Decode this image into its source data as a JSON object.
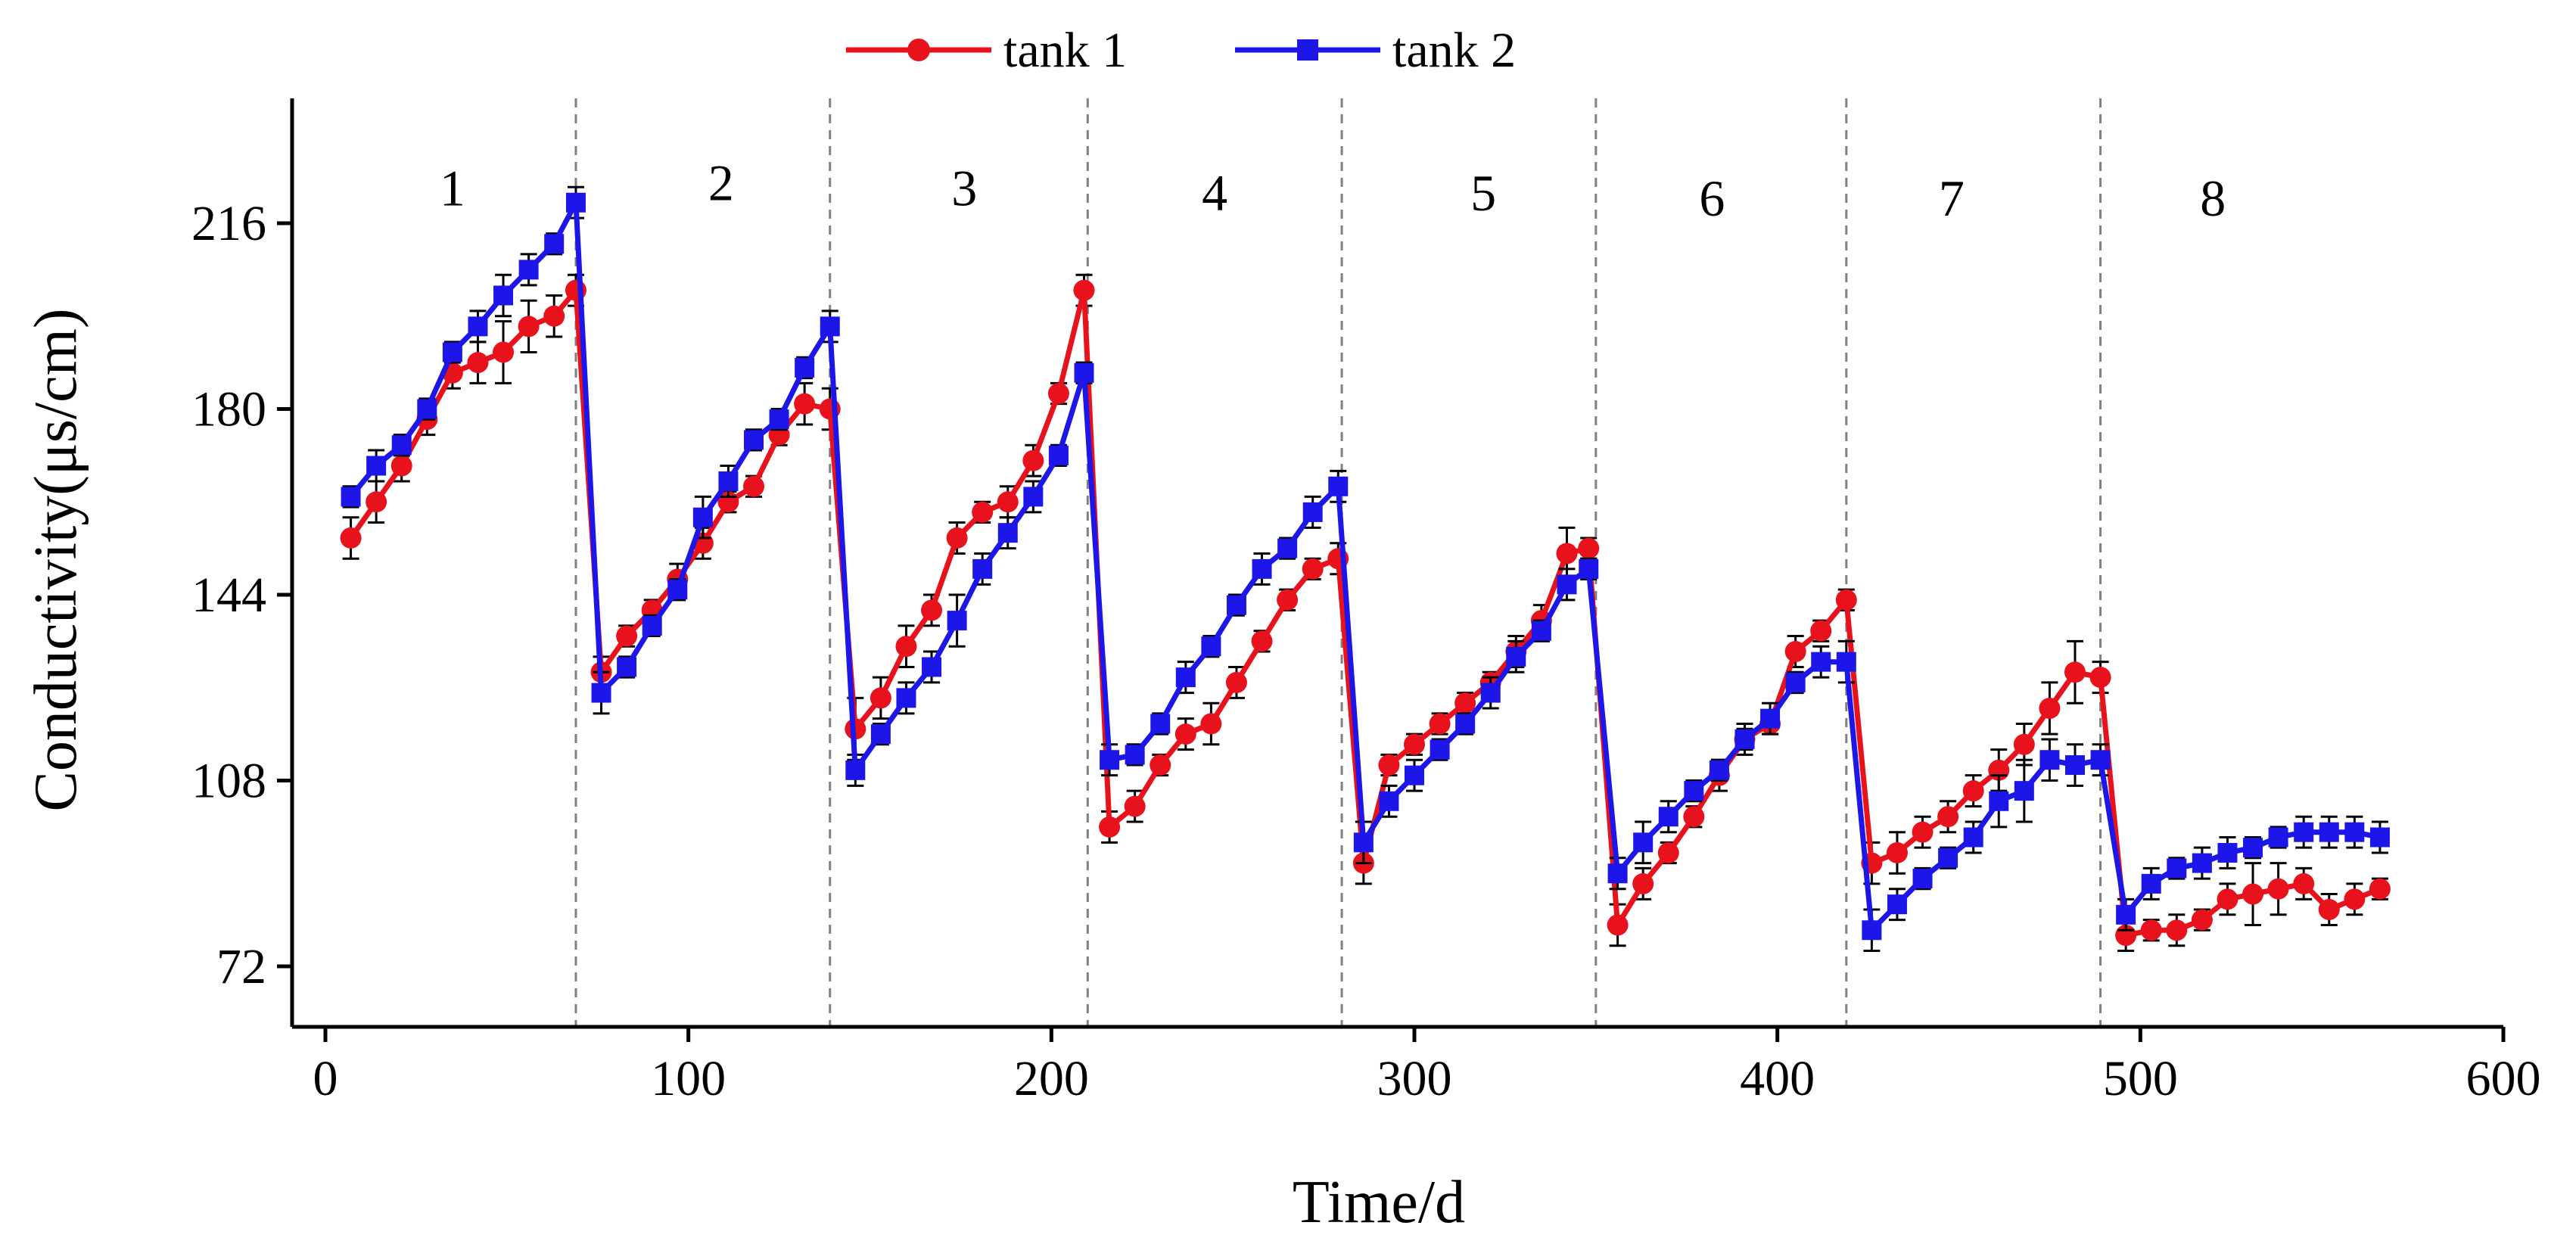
{
  "chart_data": {
    "type": "line",
    "title": "",
    "xlabel": "Time/d",
    "ylabel": "Conductivity(μs/cm)",
    "xlim": [
      -10,
      600
    ],
    "ylim": [
      60,
      239
    ],
    "xticks": [
      0,
      100,
      200,
      300,
      400,
      500,
      600
    ],
    "yticks": [
      72,
      108,
      144,
      180,
      216
    ],
    "legend_position": "top-center",
    "stage_boundaries": [
      69,
      139,
      210,
      280,
      350,
      419,
      489
    ],
    "stages": [
      {
        "label": "1",
        "x": 35,
        "y": 223
      },
      {
        "label": "2",
        "x": 109,
        "y": 224
      },
      {
        "label": "3",
        "x": 176,
        "y": 223
      },
      {
        "label": "4",
        "x": 245,
        "y": 222
      },
      {
        "label": "5",
        "x": 319,
        "y": 222
      },
      {
        "label": "6",
        "x": 382,
        "y": 221
      },
      {
        "label": "7",
        "x": 448,
        "y": 221
      },
      {
        "label": "8",
        "x": 520,
        "y": 221
      }
    ],
    "series": [
      {
        "name": "tank 1",
        "color": "#e8121c",
        "marker": "circle",
        "x": [
          7,
          14,
          21,
          28,
          35,
          42,
          49,
          56,
          63,
          69,
          76,
          83,
          90,
          97,
          104,
          111,
          118,
          125,
          132,
          139,
          146,
          153,
          160,
          167,
          174,
          181,
          188,
          195,
          202,
          209,
          216,
          223,
          230,
          237,
          244,
          251,
          258,
          265,
          272,
          279,
          286,
          293,
          300,
          307,
          314,
          321,
          328,
          335,
          342,
          348,
          356,
          363,
          370,
          377,
          384,
          391,
          398,
          405,
          412,
          419,
          426,
          433,
          440,
          447,
          454,
          461,
          468,
          475,
          482,
          489,
          496,
          503,
          510,
          517,
          524,
          531,
          538,
          545,
          552,
          559,
          566
        ],
        "y": [
          155,
          162,
          169,
          178,
          187,
          189,
          191,
          196,
          198,
          203,
          129,
          136,
          141,
          147,
          154,
          162,
          165,
          175,
          181,
          180,
          118,
          124,
          134,
          141,
          155,
          160,
          162,
          170,
          183,
          203,
          99,
          103,
          111,
          117,
          119,
          127,
          135,
          143,
          149,
          151,
          92,
          111,
          115,
          119,
          123,
          127,
          133,
          139,
          152,
          153,
          80,
          88,
          94,
          101,
          109,
          116,
          119,
          133,
          137,
          143,
          92,
          94,
          98,
          101,
          106,
          110,
          115,
          122,
          129,
          128,
          78,
          79,
          79,
          81,
          85,
          86,
          87,
          88,
          83,
          85,
          87
        ],
        "err": [
          4,
          4,
          3,
          3,
          3,
          4,
          6,
          5,
          4,
          3,
          3,
          2,
          2,
          3,
          3,
          2,
          2,
          2,
          4,
          4,
          6,
          4,
          4,
          3,
          3,
          2,
          3,
          3,
          2,
          3,
          3,
          3,
          2,
          3,
          4,
          3,
          2,
          2,
          2,
          3,
          4,
          2,
          2,
          2,
          2,
          2,
          3,
          3,
          5,
          2,
          4,
          3,
          2,
          2,
          3,
          3,
          2,
          3,
          2,
          2,
          4,
          4,
          3,
          3,
          3,
          4,
          4,
          5,
          6,
          3,
          3,
          2,
          3,
          2,
          3,
          6,
          5,
          3,
          3,
          3,
          2
        ]
      },
      {
        "name": "tank 2",
        "color": "#1c17e8",
        "marker": "square",
        "x": [
          7,
          14,
          21,
          28,
          35,
          42,
          49,
          56,
          63,
          69,
          76,
          83,
          90,
          97,
          104,
          111,
          118,
          125,
          132,
          139,
          146,
          153,
          160,
          167,
          174,
          181,
          188,
          195,
          202,
          209,
          216,
          223,
          230,
          237,
          244,
          251,
          258,
          265,
          272,
          279,
          286,
          293,
          300,
          307,
          314,
          321,
          328,
          335,
          342,
          348,
          356,
          363,
          370,
          377,
          384,
          391,
          398,
          405,
          412,
          419,
          426,
          433,
          440,
          447,
          454,
          461,
          468,
          475,
          482,
          489,
          496,
          503,
          510,
          517,
          524,
          531,
          538,
          545,
          552,
          559,
          566
        ],
        "y": [
          163,
          169,
          173,
          180,
          191,
          196,
          202,
          207,
          212,
          220,
          125,
          130,
          138,
          145,
          159,
          166,
          174,
          178,
          188,
          196,
          110,
          117,
          124,
          130,
          139,
          149,
          156,
          163,
          171,
          187,
          112,
          113,
          119,
          128,
          134,
          142,
          149,
          153,
          160,
          165,
          96,
          104,
          109,
          114,
          119,
          125,
          132,
          137,
          146,
          149,
          90,
          96,
          101,
          106,
          110,
          116,
          120,
          127,
          131,
          131,
          79,
          84,
          89,
          93,
          97,
          104,
          106,
          112,
          111,
          112,
          82,
          88,
          91,
          92,
          94,
          95,
          97,
          98,
          98,
          98,
          97
        ],
        "err": [
          2,
          3,
          2,
          2,
          2,
          3,
          4,
          3,
          2,
          3,
          4,
          2,
          2,
          2,
          4,
          3,
          2,
          2,
          2,
          3,
          3,
          2,
          3,
          3,
          5,
          3,
          3,
          3,
          2,
          2,
          3,
          2,
          2,
          3,
          2,
          2,
          3,
          2,
          3,
          3,
          4,
          3,
          3,
          2,
          2,
          3,
          3,
          2,
          3,
          2,
          3,
          4,
          3,
          2,
          2,
          2,
          3,
          2,
          3,
          4,
          4,
          3,
          2,
          2,
          3,
          5,
          6,
          4,
          4,
          3,
          3,
          3,
          2,
          3,
          3,
          2,
          2,
          3,
          3,
          3,
          3
        ]
      }
    ]
  }
}
